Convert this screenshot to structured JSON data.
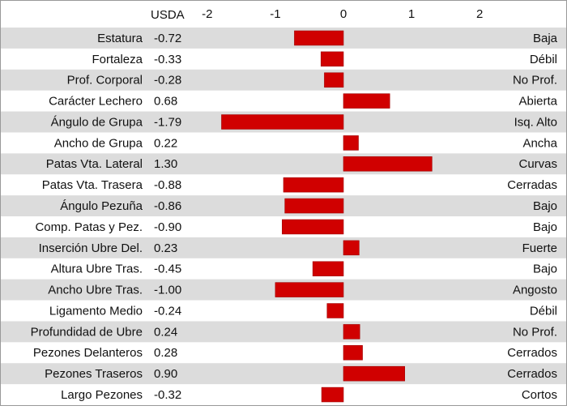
{
  "chart_data": {
    "type": "bar",
    "orientation": "horizontal",
    "value_header": "USDA",
    "categories": [
      "Estatura",
      "Fortaleza",
      "Prof. Corporal",
      "Carácter Lechero",
      "Ángulo de Grupa",
      "Ancho de Grupa",
      "Patas Vta. Lateral",
      "Patas Vta. Trasera",
      "Ángulo Pezuña",
      "Comp. Patas y Pez.",
      "Inserción Ubre Del.",
      "Altura Ubre Tras.",
      "Ancho Ubre Tras.",
      "Ligamento Medio",
      "Profundidad de Ubre",
      "Pezones Delanteros",
      "Pezones Traseros",
      "Largo Pezones"
    ],
    "values": [
      -0.72,
      -0.33,
      -0.28,
      0.68,
      -1.79,
      0.22,
      1.3,
      -0.88,
      -0.86,
      -0.9,
      0.23,
      -0.45,
      -1.0,
      -0.24,
      0.24,
      0.28,
      0.9,
      -0.32
    ],
    "value_labels": [
      "-0.72",
      "-0.33",
      "-0.28",
      "0.68",
      "-1.79",
      "0.22",
      "1.30",
      "-0.88",
      "-0.86",
      "-0.90",
      "0.23",
      "-0.45",
      "-1.00",
      "-0.24",
      "0.24",
      "0.28",
      "0.90",
      "-0.32"
    ],
    "descriptors": [
      "Baja",
      "Débil",
      "No Prof.",
      "Abierta",
      "Isq. Alto",
      "Ancha",
      "Curvas",
      "Cerradas",
      "Bajo",
      "Bajo",
      "Fuerte",
      "Bajo",
      "Angosto",
      "Débil",
      "No Prof.",
      "Cerrados",
      "Cerrados",
      "Cortos"
    ],
    "color": "#d00000",
    "xlim": [
      -2.2,
      2.2
    ],
    "xticks": [
      -2,
      -1,
      0,
      1,
      2
    ],
    "grid": false
  }
}
